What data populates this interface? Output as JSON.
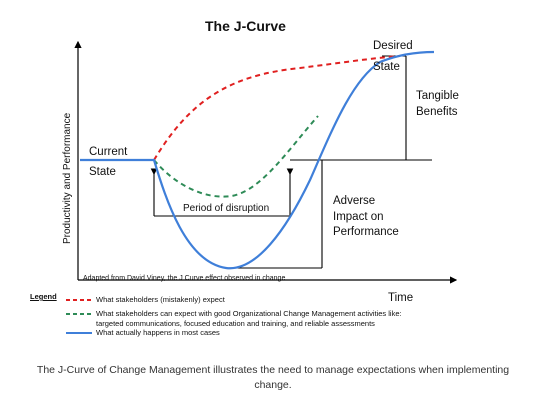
{
  "figure": {
    "title": "The J-Curve",
    "y_axis_label": "Productivity and Performance",
    "x_axis_label": "Time",
    "current_state_line1": "Current",
    "current_state_line2": "State",
    "desired_state_line1": "Desired",
    "desired_state_line2": "State",
    "tangible_benefits_line1": "Tangible",
    "tangible_benefits_line2": "Benefits",
    "adverse_impact_line1": "Adverse",
    "adverse_impact_line2": "Impact on",
    "adverse_impact_line3": "Performance",
    "period_of_disruption": "Period of disruption",
    "source_note": "Adapted from David Viney, the J Curve effect observed in change"
  },
  "legend": {
    "title": "Legend",
    "items": [
      {
        "text": "What stakeholders (mistakenly) expect",
        "style": "dashed",
        "color": "#e02020"
      },
      {
        "text_line1": "What stakeholders can expect with good Organizational Change Management activities like:",
        "text_line2": "targeted communications, focused education and training, and reliable assessments",
        "style": "dashed",
        "color": "#2e8b57"
      },
      {
        "text": "What actually happens in most cases",
        "style": "solid",
        "color": "#3f7fd9"
      }
    ]
  },
  "caption": {
    "line1": "The J-Curve of Change Management illustrates the need to manage expectations when implementing",
    "line2": "change."
  }
}
